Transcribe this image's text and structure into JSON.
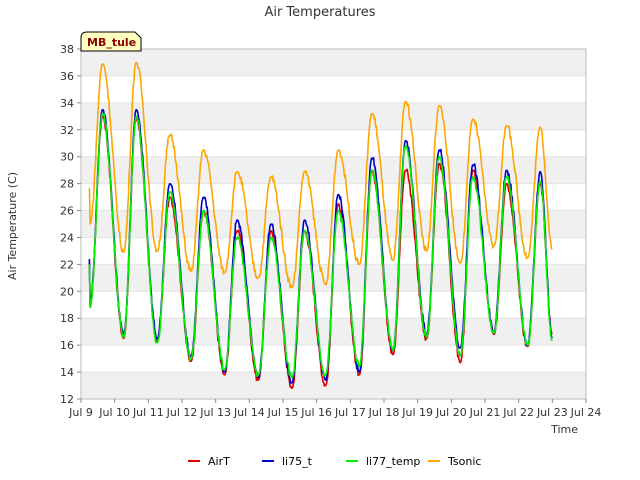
{
  "chart_data": {
    "type": "line",
    "title": "Air Temperatures",
    "xlabel": "Time",
    "ylabel": "Air Temperature (C)",
    "badge": "MB_tule",
    "xlim": [
      9,
      24
    ],
    "ylim": [
      12,
      38
    ],
    "x_ticks": [
      9,
      10,
      11,
      12,
      13,
      14,
      15,
      16,
      17,
      18,
      19,
      20,
      21,
      22,
      23,
      24
    ],
    "x_tick_labels": [
      "Jul 9",
      "Jul 10",
      "Jul 11",
      "Jul 12",
      "Jul 13",
      "Jul 14",
      "Jul 15",
      "Jul 16",
      "Jul 17",
      "Jul 18",
      "Jul 19",
      "Jul 20",
      "Jul 21",
      "Jul 22",
      "Jul 23",
      "Jul 24"
    ],
    "y_ticks": [
      12,
      14,
      16,
      18,
      20,
      22,
      24,
      26,
      28,
      30,
      32,
      34,
      36,
      38
    ],
    "y_tick_labels": [
      "12",
      "14",
      "16",
      "18",
      "20",
      "22",
      "24",
      "26",
      "28",
      "30",
      "32",
      "34",
      "36",
      "38"
    ],
    "grid": "horizontal bands",
    "legend_position": "bottom",
    "series": [
      {
        "name": "AirT",
        "color": "#dd0000",
        "daily_min": [
          19.0,
          16.5,
          16.3,
          14.8,
          13.8,
          13.4,
          12.8,
          13.0,
          13.8,
          15.3,
          16.5,
          14.7,
          16.8,
          15.9
        ],
        "daily_max": [
          33.0,
          32.8,
          27.0,
          26.0,
          24.5,
          24.5,
          24.5,
          26.5,
          29.0,
          29.0,
          29.5,
          29.0,
          28.0,
          28.0
        ],
        "start": 22.2,
        "end": 16.8
      },
      {
        "name": "li75_t",
        "color": "#0000cc",
        "daily_min": [
          19.0,
          16.8,
          16.5,
          15.2,
          14.0,
          13.6,
          13.2,
          13.4,
          14.0,
          15.6,
          16.8,
          15.8,
          17.0,
          16.0
        ],
        "daily_max": [
          33.5,
          33.5,
          28.0,
          27.0,
          25.3,
          25.0,
          25.3,
          27.2,
          29.9,
          31.2,
          30.5,
          29.4,
          29.0,
          28.9
        ],
        "start": 22.4,
        "end": 16.5
      },
      {
        "name": "li77_temp",
        "color": "#00ee00",
        "daily_min": [
          18.8,
          16.6,
          16.2,
          15.0,
          14.2,
          13.8,
          13.6,
          13.8,
          14.4,
          15.6,
          16.6,
          15.2,
          16.9,
          16.0
        ],
        "daily_max": [
          33.2,
          33.0,
          27.4,
          26.0,
          24.0,
          24.0,
          24.5,
          26.0,
          29.0,
          30.8,
          30.0,
          28.5,
          28.5,
          28.2
        ],
        "start": 22.0,
        "end": 16.3
      },
      {
        "name": "Tsonic",
        "color": "#ffa500",
        "daily_min": [
          25.0,
          22.9,
          23.0,
          21.5,
          21.4,
          21.0,
          20.3,
          20.5,
          22.0,
          22.3,
          23.0,
          22.1,
          23.4,
          22.5
        ],
        "daily_max": [
          36.9,
          37.0,
          31.6,
          30.5,
          28.9,
          28.5,
          28.9,
          30.5,
          33.2,
          34.1,
          33.8,
          32.8,
          32.3,
          32.2
        ],
        "start": 27.7,
        "end": 23.1
      }
    ]
  }
}
